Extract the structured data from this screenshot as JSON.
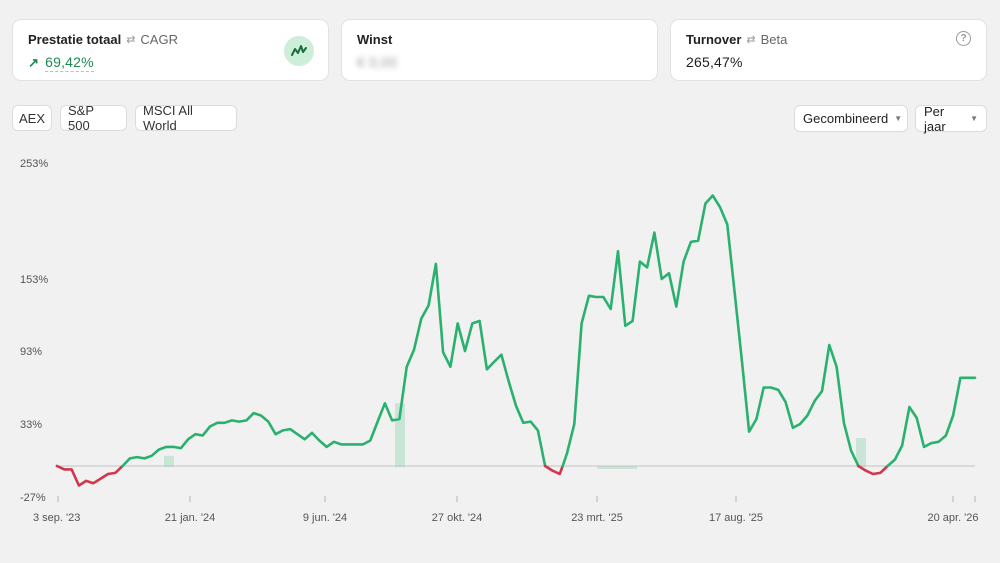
{
  "cards": {
    "performance": {
      "label": "Prestatie totaal",
      "alt_label": "CAGR",
      "value": "69,42%",
      "arrow": "↗"
    },
    "profit": {
      "label": "Winst",
      "value": "€ 0,00"
    },
    "turnover": {
      "label": "Turnover",
      "alt_label": "Beta",
      "value": "265,47%",
      "help": "?"
    }
  },
  "benchmarks": [
    "AEX",
    "S&P 500",
    "MSCI All World"
  ],
  "controls": {
    "mode": "Gecombineerd",
    "period": "Per jaar"
  },
  "colors": {
    "positive": "#2ab06f",
    "negative": "#d0364d",
    "accent_bg": "#cdeed9"
  },
  "chart_data": {
    "type": "line",
    "y_ticks": [
      "253%",
      "153%",
      "93%",
      "33%",
      "-27%"
    ],
    "x_ticks": [
      "3 sep. '23",
      "21 jan. '24",
      "9 jun. '24",
      "27 okt. '24",
      "23 mrt. '25",
      "17 aug. '25",
      "20 apr. '26"
    ],
    "baseline": 0,
    "series": [
      {
        "values": [
          0,
          -3,
          -3,
          -17,
          -13,
          -15,
          -11,
          -7,
          -6,
          0,
          6,
          7,
          6,
          8,
          13,
          15,
          15,
          14,
          21,
          25,
          24,
          31,
          34,
          34,
          36,
          35,
          36,
          42,
          40,
          35,
          25,
          28,
          29,
          25,
          21,
          26,
          20,
          15,
          19,
          17,
          17,
          17,
          17,
          20,
          35,
          50,
          36,
          37,
          80,
          94,
          120,
          131,
          166,
          92,
          80,
          116,
          93,
          116,
          118,
          78,
          84,
          90,
          68,
          48,
          34,
          35,
          28,
          0,
          -4,
          -7,
          10,
          33,
          116,
          139,
          138,
          138,
          128,
          177,
          114,
          118,
          168,
          163,
          193,
          153,
          158,
          130,
          168,
          185,
          186,
          218,
          225,
          215,
          200,
          142,
          85,
          27,
          37,
          63,
          63,
          61,
          51,
          30,
          33,
          40,
          52,
          60,
          98,
          80,
          34,
          12,
          0,
          -4,
          -7,
          -6,
          0,
          5,
          16,
          47,
          38,
          15,
          18,
          19,
          24,
          40,
          71,
          71,
          71
        ]
      }
    ],
    "highlights": [
      {
        "y_from": -1,
        "y_to": 8
      },
      {
        "y_from": -1,
        "y_to": 50
      },
      {
        "y_from": -1,
        "y_to": 0
      },
      {
        "y_from": -1,
        "y_to": 22
      }
    ]
  }
}
